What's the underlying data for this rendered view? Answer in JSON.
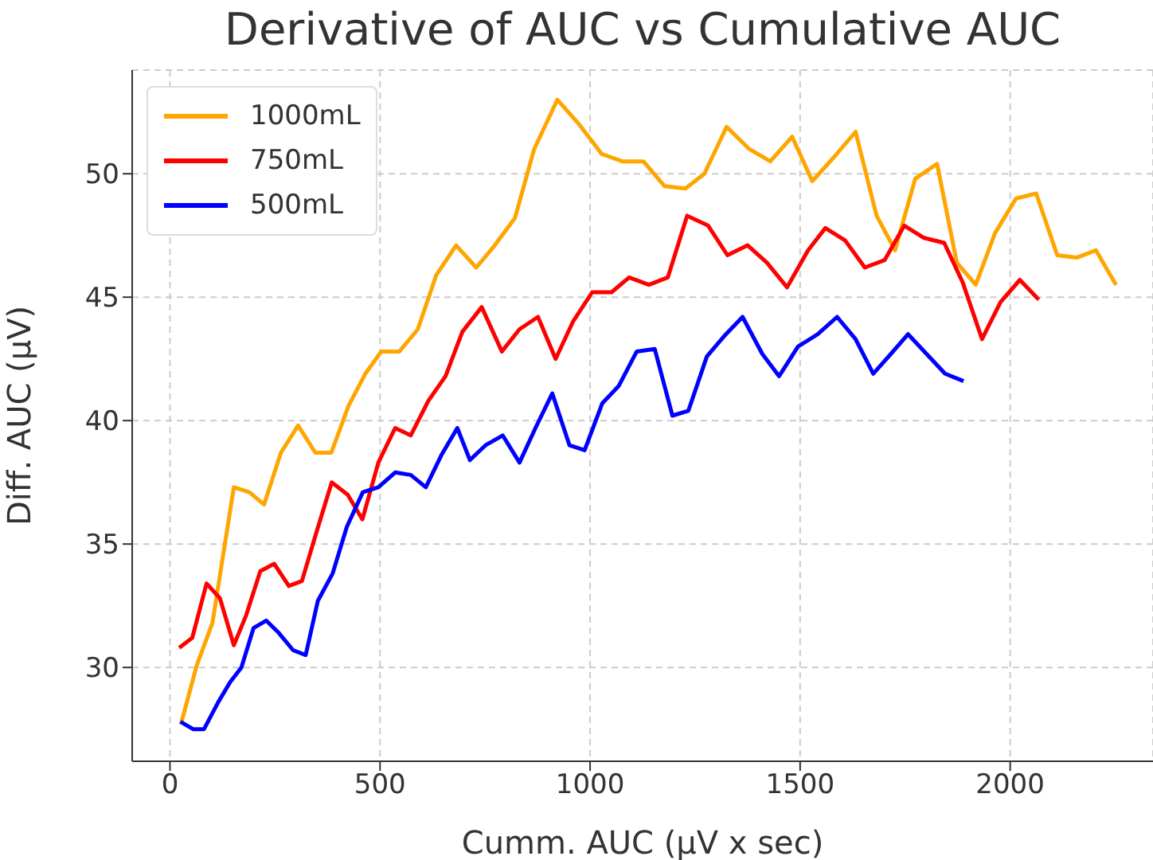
{
  "chart_data": {
    "type": "line",
    "title": "Derivative of AUC vs Cumulative AUC",
    "xlabel": "Cumm. AUC (µV x sec)",
    "ylabel": "Diff. AUC (µV)",
    "xlim": [
      -90,
      2340
    ],
    "ylim": [
      26.2,
      54.2
    ],
    "xticks": [
      0,
      500,
      1000,
      1500,
      2000
    ],
    "yticks": [
      30,
      35,
      40,
      45,
      50
    ],
    "grid": true,
    "legend": "top left",
    "line_style": "solid",
    "marker": "none",
    "series": [
      {
        "name": "1000mL",
        "color": "#ffa500",
        "x": [
          26,
          64,
          101,
          152,
          189,
          224,
          264,
          305,
          346,
          384,
          425,
          465,
          503,
          546,
          590,
          634,
          681,
          729,
          773,
          821,
          867,
          922,
          974,
          1028,
          1077,
          1127,
          1177,
          1227,
          1272,
          1325,
          1379,
          1429,
          1481,
          1529,
          1582,
          1632,
          1682,
          1726,
          1774,
          1826,
          1873,
          1918,
          1964,
          2014,
          2062,
          2112,
          2158,
          2204,
          2252
        ],
        "values": [
          27.7,
          30.1,
          31.8,
          37.3,
          37.1,
          36.6,
          38.7,
          39.8,
          38.7,
          38.7,
          40.6,
          41.9,
          42.8,
          42.8,
          43.7,
          45.9,
          47.1,
          46.2,
          47.1,
          48.2,
          51.0,
          53.0,
          52.0,
          50.8,
          50.5,
          50.5,
          49.5,
          49.4,
          50.0,
          51.9,
          51.0,
          50.5,
          51.5,
          49.7,
          50.7,
          51.7,
          48.3,
          46.9,
          49.8,
          50.4,
          46.4,
          45.5,
          47.6,
          49.0,
          49.2,
          46.7,
          46.6,
          46.9,
          45.5
        ]
      },
      {
        "name": "750mL",
        "color": "#ff0000",
        "x": [
          22,
          53,
          87,
          119,
          152,
          181,
          215,
          248,
          283,
          314,
          349,
          385,
          423,
          458,
          496,
          536,
          573,
          615,
          656,
          696,
          742,
          790,
          832,
          876,
          918,
          959,
          1005,
          1051,
          1093,
          1140,
          1185,
          1231,
          1281,
          1327,
          1375,
          1421,
          1469,
          1519,
          1560,
          1607,
          1654,
          1701,
          1748,
          1795,
          1843,
          1887,
          1933,
          1977,
          2023,
          2068
        ],
        "values": [
          30.8,
          31.2,
          33.4,
          32.8,
          30.9,
          32.1,
          33.9,
          34.2,
          33.3,
          33.5,
          35.5,
          37.5,
          37.0,
          36.0,
          38.3,
          39.7,
          39.4,
          40.8,
          41.8,
          43.6,
          44.6,
          42.8,
          43.7,
          44.2,
          42.5,
          44.0,
          45.2,
          45.2,
          45.8,
          45.5,
          45.8,
          48.3,
          47.9,
          46.7,
          47.1,
          46.4,
          45.4,
          46.9,
          47.8,
          47.3,
          46.2,
          46.5,
          47.9,
          47.4,
          47.2,
          45.6,
          43.3,
          44.8,
          45.7,
          44.9
        ]
      },
      {
        "name": "500mL",
        "color": "#0000ff",
        "x": [
          25,
          55,
          81,
          115,
          143,
          170,
          199,
          229,
          259,
          293,
          323,
          352,
          387,
          421,
          459,
          496,
          536,
          573,
          609,
          646,
          684,
          714,
          751,
          792,
          832,
          870,
          910,
          951,
          987,
          1029,
          1068,
          1111,
          1154,
          1196,
          1234,
          1278,
          1318,
          1363,
          1410,
          1450,
          1495,
          1542,
          1588,
          1632,
          1674,
          1716,
          1757,
          1801,
          1845,
          1889
        ],
        "values": [
          27.8,
          27.5,
          27.5,
          28.6,
          29.4,
          30.0,
          31.6,
          31.9,
          31.4,
          30.7,
          30.5,
          32.7,
          33.8,
          35.7,
          37.1,
          37.3,
          37.9,
          37.8,
          37.3,
          38.6,
          39.7,
          38.4,
          39.0,
          39.4,
          38.3,
          39.7,
          41.1,
          39.0,
          38.8,
          40.7,
          41.4,
          42.8,
          42.9,
          40.2,
          40.4,
          42.6,
          43.4,
          44.2,
          42.7,
          41.8,
          43.0,
          43.5,
          44.2,
          43.3,
          41.9,
          42.7,
          43.5,
          42.7,
          41.9,
          41.6
        ]
      }
    ]
  }
}
